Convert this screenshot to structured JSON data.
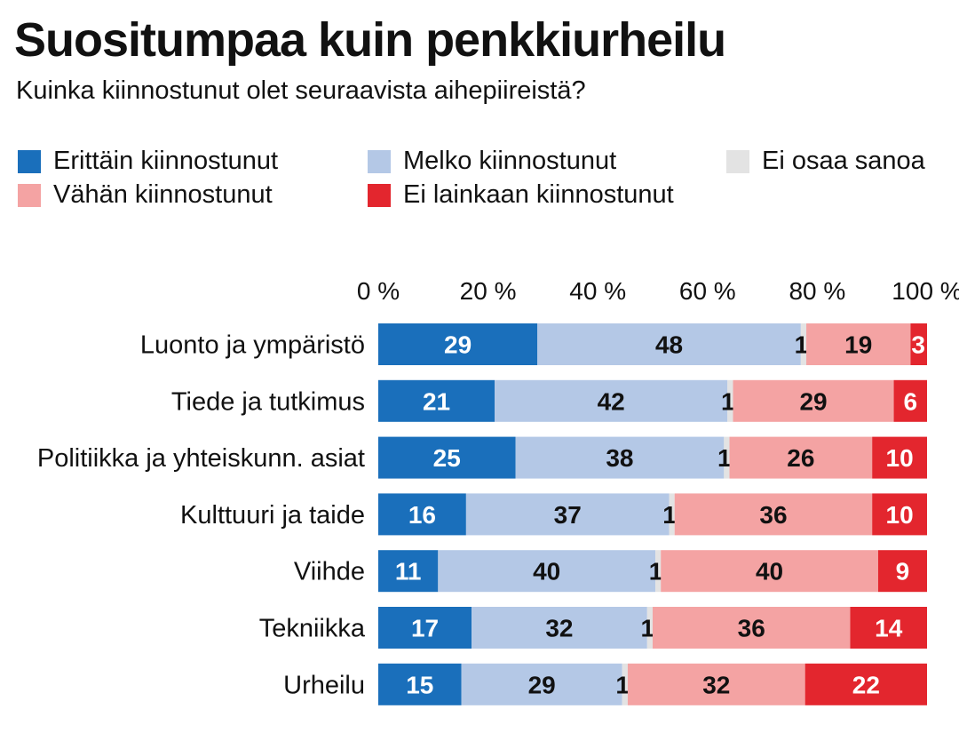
{
  "title": "Suositumpaa kuin penkkiurheilu",
  "subtitle": "Kuinka kiinnostunut olet seuraavista aihepiireistä?",
  "colors": {
    "erittain": "#1a6fbb",
    "melko": "#b4c8e6",
    "eos": "#e3e3e3",
    "vahan": "#f4a3a3",
    "ei": "#e3262e"
  },
  "chart_data": {
    "type": "bar",
    "orientation": "horizontal",
    "stacked": true,
    "title": "Suositumpaa kuin penkkiurheilu",
    "subtitle": "Kuinka kiinnostunut olet seuraavista aihepiireistä?",
    "xlim": [
      0,
      100
    ],
    "x_ticks": [
      "0 %",
      "20 %",
      "40 %",
      "60 %",
      "80 %",
      "100 %"
    ],
    "legend_position": "top",
    "categories": [
      "Luonto ja ympäristö",
      "Tiede ja tutkimus",
      "Politiikka ja yhteiskunn. asiat",
      "Kulttuuri ja taide",
      "Viihde",
      "Tekniikka",
      "Urheilu"
    ],
    "series": [
      {
        "name": "Erittäin kiinnostunut",
        "color": "#1a6fbb",
        "label_color": "#ffffff",
        "values": [
          29,
          21,
          25,
          16,
          11,
          17,
          15
        ]
      },
      {
        "name": "Melko kiinnostunut",
        "color": "#b4c8e6",
        "label_color": "#111111",
        "values": [
          48,
          42,
          38,
          37,
          40,
          32,
          29
        ]
      },
      {
        "name": "Ei osaa sanoa",
        "color": "#e3e3e3",
        "label_color": "#111111",
        "values": [
          1,
          1,
          1,
          1,
          1,
          1,
          1
        ]
      },
      {
        "name": "Vähän kiinnostunut",
        "color": "#f4a3a3",
        "label_color": "#111111",
        "values": [
          19,
          29,
          26,
          36,
          40,
          36,
          32
        ]
      },
      {
        "name": "Ei lainkaan kiinnostunut",
        "color": "#e3262e",
        "label_color": "#ffffff",
        "values": [
          3,
          6,
          10,
          10,
          9,
          14,
          22
        ]
      }
    ]
  }
}
